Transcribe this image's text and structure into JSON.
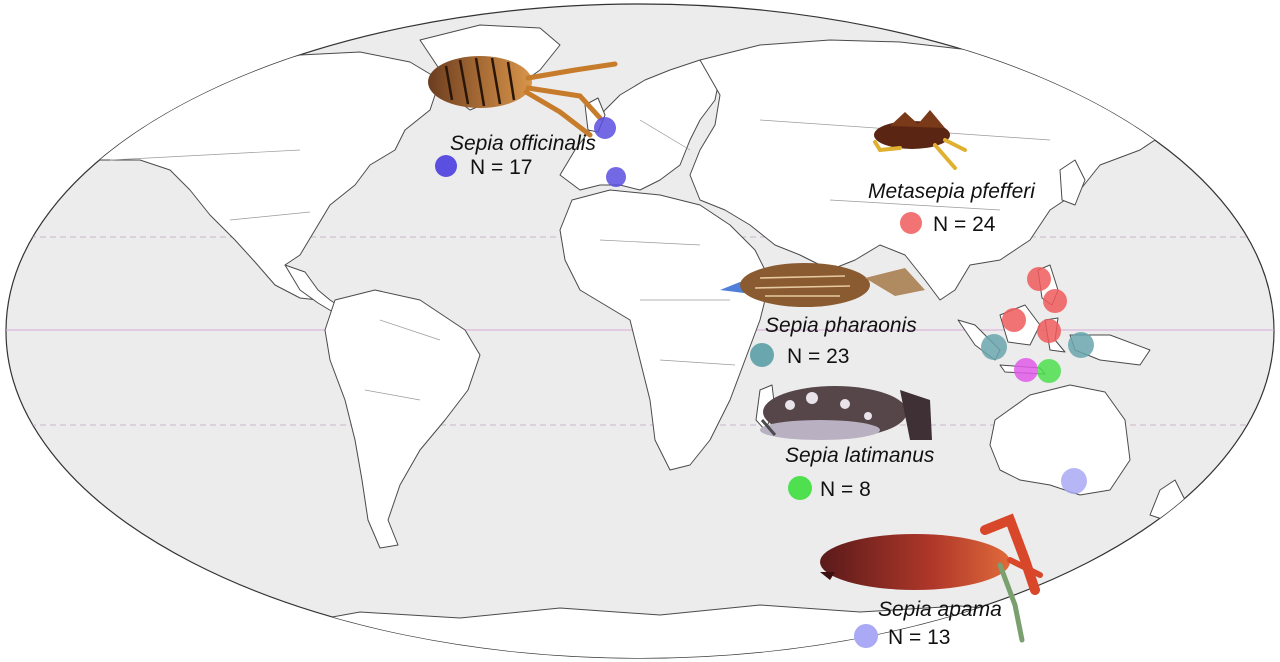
{
  "colors": {
    "ocean": "#ececec",
    "land": "#ffffff",
    "sepia_officinalis": "#5a4fe0",
    "metasepia_pfefferi": "#f05a5a",
    "sepia_pharaonis": "#6aa6ad",
    "sepia_latimanus": "#4ee04e",
    "sepia_apama": "#a9a9f5",
    "hybrid_marker": "#e15be8"
  },
  "species": [
    {
      "id": "sepia-officinalis",
      "name": "Sepia officinalis",
      "count_label": "N = 17",
      "color": "#5a4fe0"
    },
    {
      "id": "metasepia-pfefferi",
      "name": "Metasepia pfefferi",
      "count_label": "N = 24",
      "color": "#f05a5a"
    },
    {
      "id": "sepia-pharaonis",
      "name": "Sepia pharaonis",
      "count_label": "N = 23",
      "color": "#6aa6ad"
    },
    {
      "id": "sepia-latimanus",
      "name": "Sepia latimanus",
      "count_label": "N = 8",
      "color": "#4ee04e"
    },
    {
      "id": "sepia-apama",
      "name": "Sepia apama",
      "count_label": "N = 13",
      "color": "#a9a9f5"
    }
  ],
  "sample_sites": [
    {
      "species": "sepia-officinalis",
      "location": "English Channel"
    },
    {
      "species": "sepia-officinalis",
      "location": "Western Mediterranean"
    },
    {
      "species": "metasepia-pfefferi",
      "location": "Philippines north"
    },
    {
      "species": "metasepia-pfefferi",
      "location": "Philippines south"
    },
    {
      "species": "metasepia-pfefferi",
      "location": "Borneo"
    },
    {
      "species": "metasepia-pfefferi",
      "location": "Sulawesi"
    },
    {
      "species": "sepia-pharaonis",
      "location": "Sumatra"
    },
    {
      "species": "sepia-pharaonis",
      "location": "New Guinea"
    },
    {
      "species": "sepia-latimanus",
      "location": "Timor"
    },
    {
      "species": "hybrid",
      "location": "Java"
    },
    {
      "species": "sepia-apama",
      "location": "South Australia"
    }
  ]
}
